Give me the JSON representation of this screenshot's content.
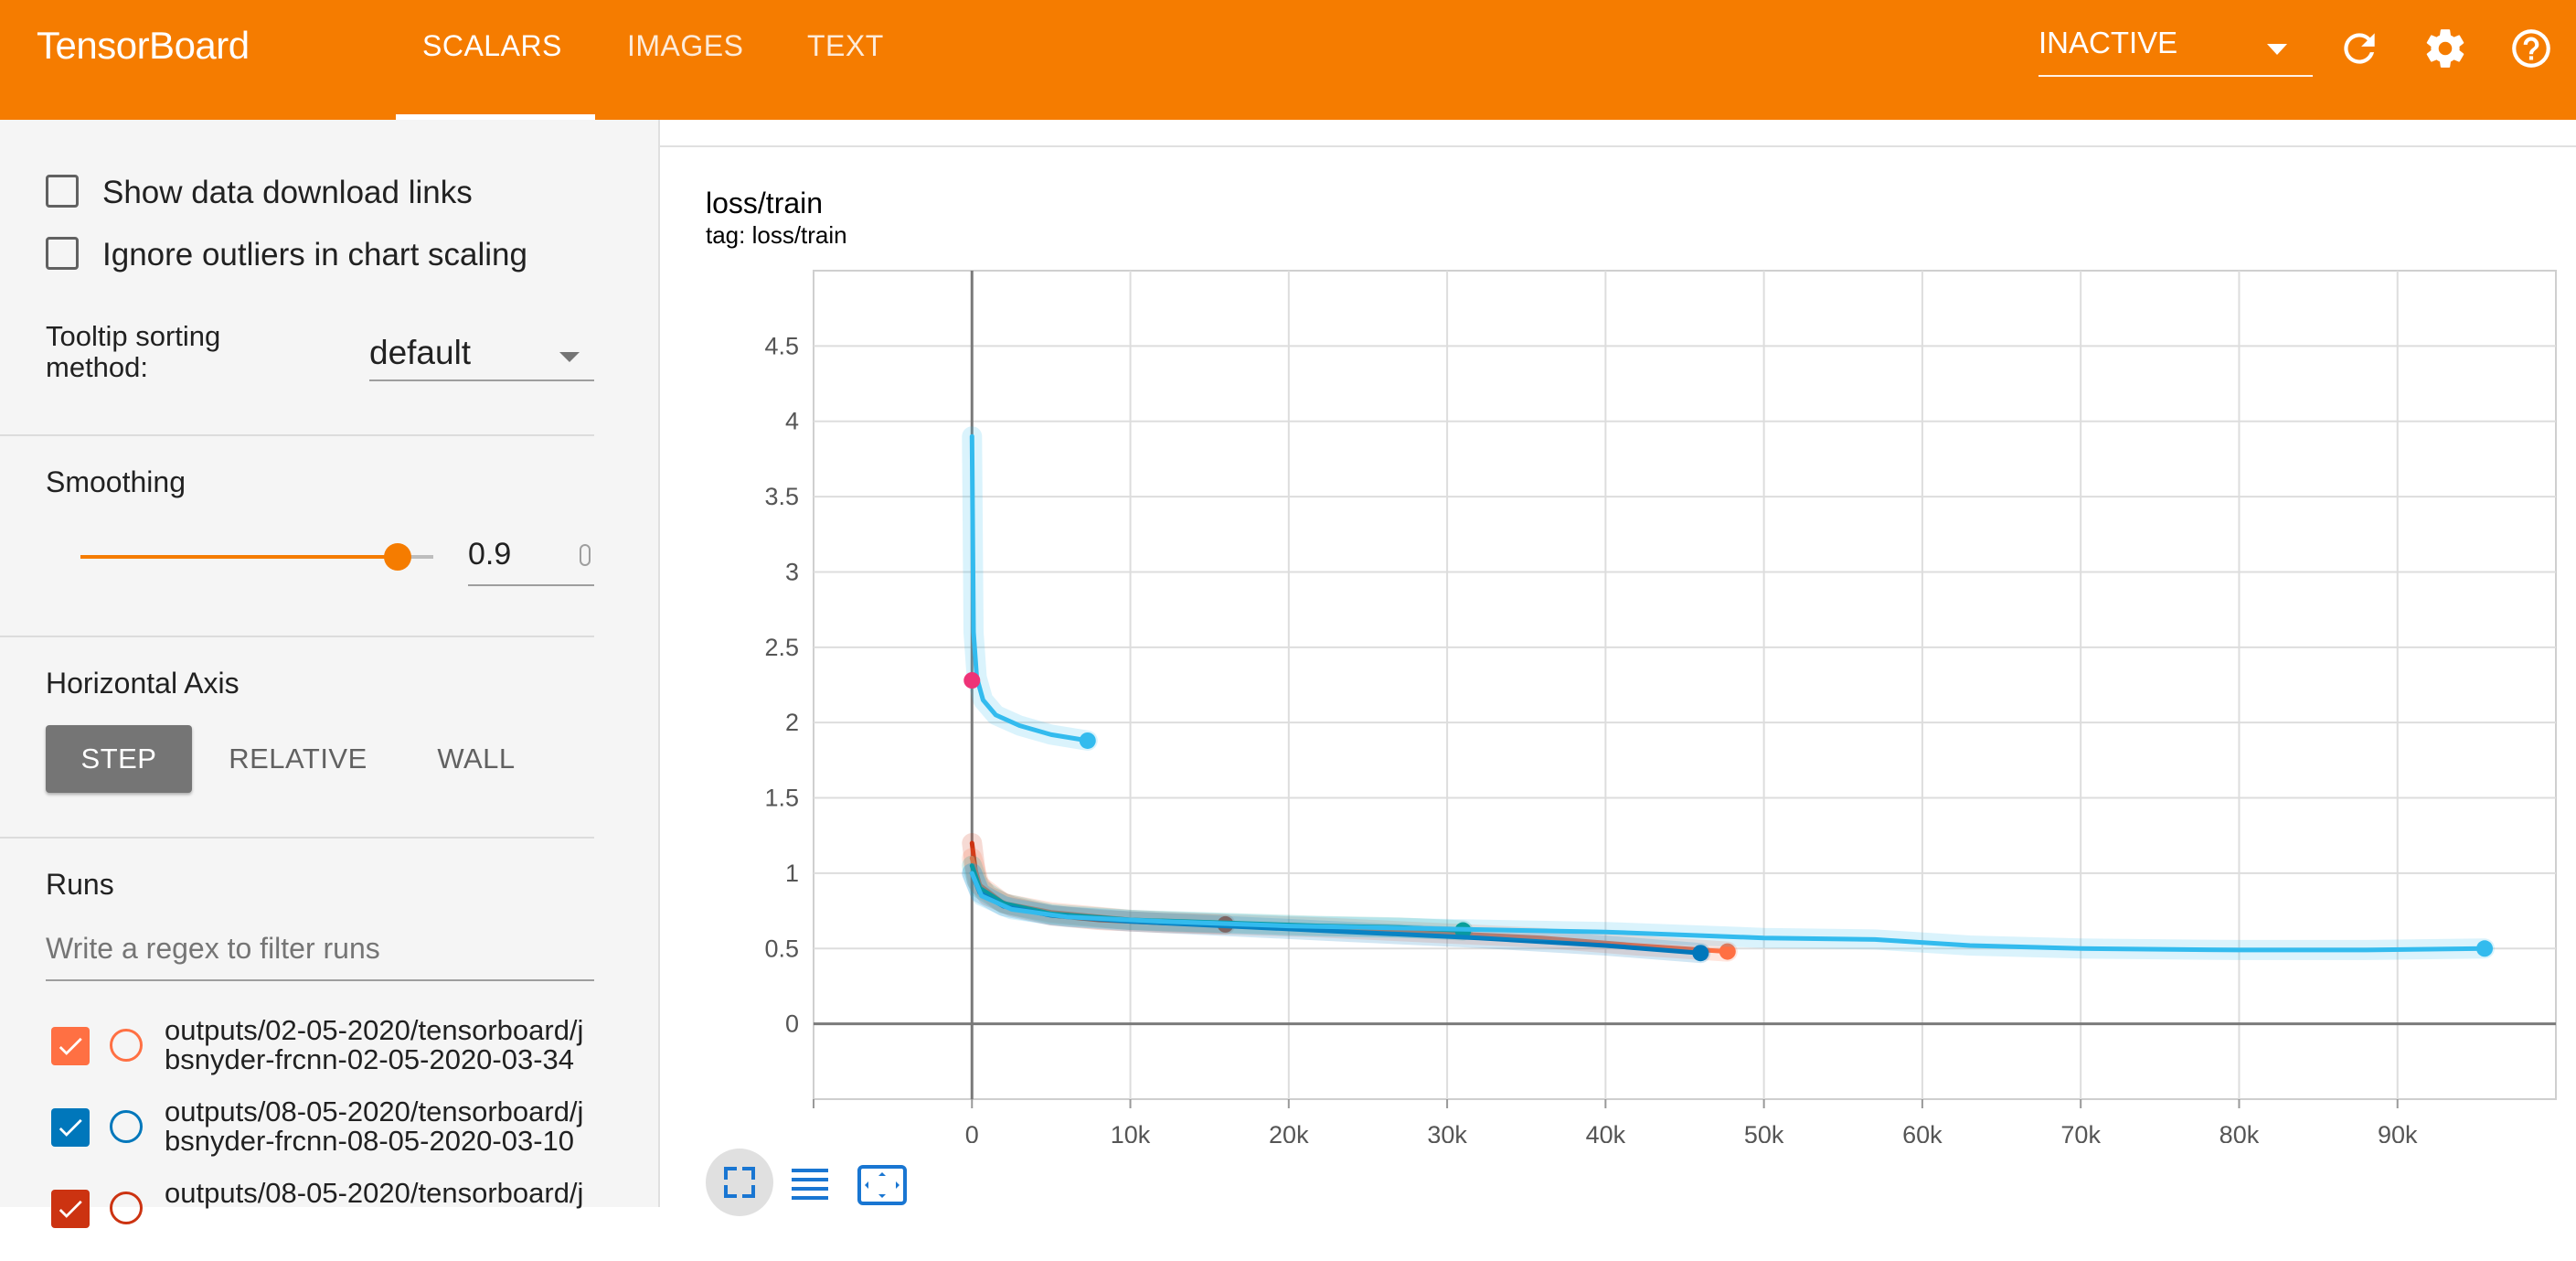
{
  "header": {
    "brand": "TensorBoard",
    "tabs": [
      {
        "label": "SCALARS",
        "active": true
      },
      {
        "label": "IMAGES",
        "active": false
      },
      {
        "label": "TEXT",
        "active": false
      }
    ],
    "run_selector": "INACTIVE",
    "icons": [
      "refresh-icon",
      "settings-gear-icon",
      "help-icon"
    ]
  },
  "sidebar": {
    "show_download_links": "Show data download links",
    "ignore_outliers": "Ignore outliers in chart scaling",
    "tooltip_sort_label": "Tooltip sorting method:",
    "tooltip_sort_value": "default",
    "smoothing_label": "Smoothing",
    "smoothing_value": "0.9",
    "smoothing_fraction": 0.9,
    "horizontal_axis_label": "Horizontal Axis",
    "axis_buttons": [
      {
        "label": "STEP",
        "selected": true
      },
      {
        "label": "RELATIVE",
        "selected": false
      },
      {
        "label": "WALL",
        "selected": false
      }
    ],
    "runs_label": "Runs",
    "runs_filter_placeholder": "Write a regex to filter runs",
    "runs": [
      {
        "line1": "outputs/02-05-2020/tensorboard/j",
        "line2": "bsnyder-frcnn-02-05-2020-03-34",
        "color": "#ff7043",
        "checked": true
      },
      {
        "line1": "outputs/08-05-2020/tensorboard/j",
        "line2": "bsnyder-frcnn-08-05-2020-03-10",
        "color": "#0077bb",
        "checked": true
      },
      {
        "line1": "outputs/08-05-2020/tensorboard/j",
        "line2": "",
        "color": "#cc3311",
        "checked": true
      }
    ]
  },
  "main": {
    "card_title": "loss/train",
    "card_tag": "tag: loss/train",
    "chart_buttons": [
      "fit-domain-icon",
      "toggle-log-scale-icon",
      "expand-chart-icon"
    ]
  },
  "chart_data": {
    "type": "line",
    "title": "loss/train",
    "xlabel": "",
    "ylabel": "",
    "xlim": [
      -10000,
      100000
    ],
    "ylim": [
      -0.5,
      5.0
    ],
    "x_ticks": [
      "0",
      "10k",
      "20k",
      "30k",
      "40k",
      "50k",
      "60k",
      "70k",
      "80k",
      "90k"
    ],
    "x_tick_values": [
      0,
      10000,
      20000,
      30000,
      40000,
      50000,
      60000,
      70000,
      80000,
      90000
    ],
    "y_ticks": [
      "0",
      "0.5",
      "1",
      "1.5",
      "2",
      "2.5",
      "3",
      "3.5",
      "4",
      "4.5"
    ],
    "y_tick_values": [
      0,
      0.5,
      1,
      1.5,
      2,
      2.5,
      3,
      3.5,
      4,
      4.5
    ],
    "grid": true,
    "series": [
      {
        "color": "#33bbee",
        "x": [
          0,
          100,
          300,
          700,
          1500,
          3000,
          5000,
          7300
        ],
        "y": [
          3.9,
          2.6,
          2.3,
          2.15,
          2.05,
          1.98,
          1.92,
          1.88
        ]
      },
      {
        "color": "#ee3377",
        "x": [
          0
        ],
        "y": [
          2.28
        ]
      },
      {
        "color": "#cc3311",
        "x": [
          0,
          300,
          1000,
          2500,
          5000,
          8000,
          12000,
          16000
        ],
        "y": [
          1.2,
          0.95,
          0.85,
          0.78,
          0.72,
          0.69,
          0.67,
          0.66
        ]
      },
      {
        "color": "#ff7043",
        "x": [
          0,
          500,
          2000,
          5000,
          10000,
          16000,
          22000,
          30000,
          36000,
          42000,
          47700
        ],
        "y": [
          1.1,
          0.92,
          0.8,
          0.74,
          0.69,
          0.66,
          0.64,
          0.6,
          0.57,
          0.52,
          0.48
        ]
      },
      {
        "color": "#009988",
        "x": [
          0,
          500,
          2000,
          5000,
          10000,
          16000,
          22000,
          27000,
          31000
        ],
        "y": [
          1.05,
          0.9,
          0.8,
          0.73,
          0.69,
          0.67,
          0.65,
          0.64,
          0.62
        ]
      },
      {
        "color": "#0077bb",
        "x": [
          0,
          500,
          2000,
          5000,
          10000,
          16000,
          24000,
          32000,
          40000,
          46000
        ],
        "y": [
          1.0,
          0.87,
          0.78,
          0.72,
          0.68,
          0.65,
          0.61,
          0.57,
          0.52,
          0.47
        ]
      },
      {
        "color": "#33bbee",
        "x": [
          0,
          600,
          2500,
          6000,
          12000,
          20000,
          30000,
          40000,
          50000,
          57000,
          63000,
          70000,
          80000,
          88000,
          95500
        ],
        "y": [
          1.0,
          0.85,
          0.76,
          0.71,
          0.68,
          0.65,
          0.63,
          0.61,
          0.57,
          0.56,
          0.52,
          0.5,
          0.49,
          0.49,
          0.5
        ]
      }
    ]
  }
}
